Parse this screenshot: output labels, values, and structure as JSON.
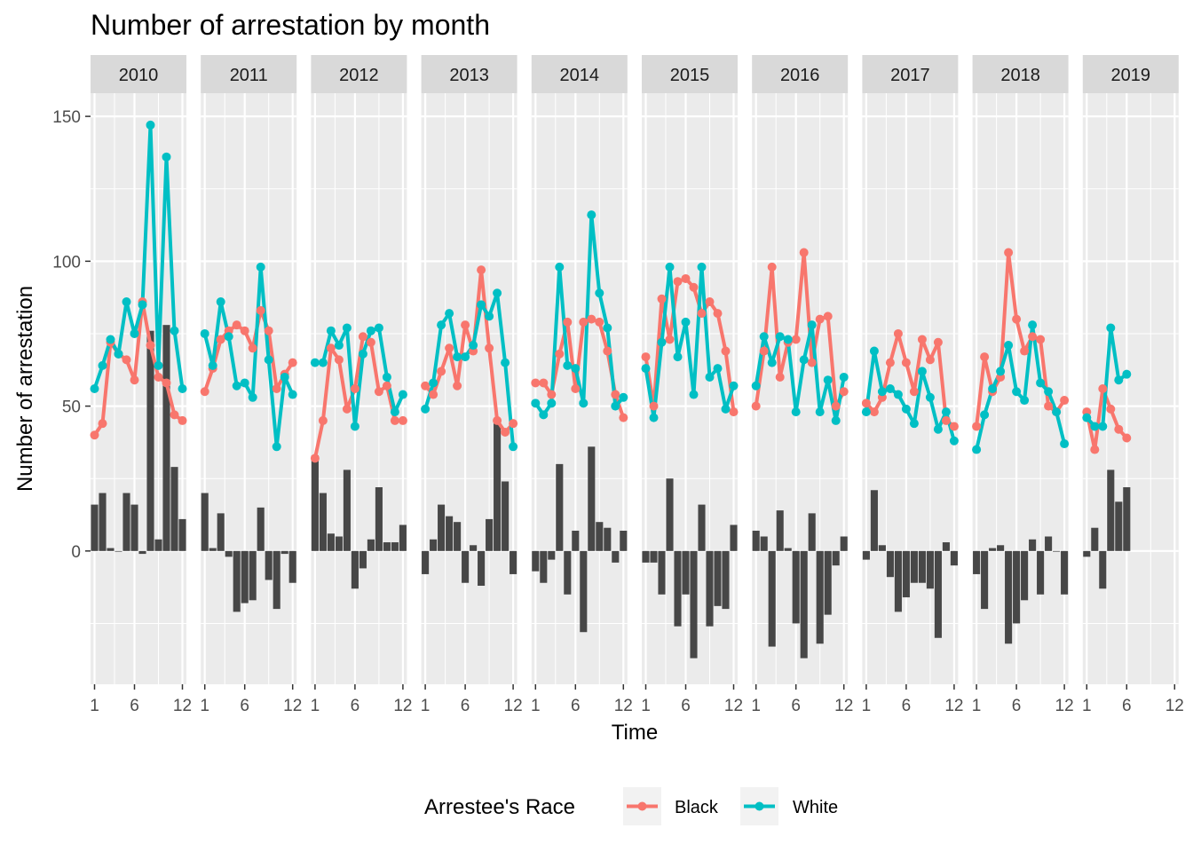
{
  "chart_data": {
    "type": "line",
    "title": "Number of arrestation by month",
    "xlabel": "Time",
    "ylabel": "Number of arrestation",
    "x_ticks": [
      "1",
      "6",
      "12"
    ],
    "y_ticks": [
      "0",
      "50",
      "100",
      "150"
    ],
    "ylim": [
      -46,
      158
    ],
    "xlim": [
      0.5,
      12.5
    ],
    "grid": true,
    "legend": {
      "title": "Arrestee's Race",
      "position": "bottom",
      "entries": [
        {
          "label": "Black",
          "color": "#f8766d"
        },
        {
          "label": "White",
          "color": "#00bfc4"
        }
      ]
    },
    "colors": {
      "Black": "#f8766d",
      "White": "#00bfc4",
      "difference_bars": "#474747"
    },
    "facets": [
      {
        "year": "2010",
        "black": [
          40,
          44,
          72,
          68,
          66,
          59,
          86,
          71,
          60,
          58,
          47,
          45
        ],
        "white": [
          56,
          64,
          73,
          68,
          86,
          75,
          85,
          147,
          64,
          136,
          76,
          56
        ],
        "diff": [
          16,
          20,
          1,
          0,
          20,
          16,
          -1,
          76,
          4,
          78,
          29,
          11
        ]
      },
      {
        "year": "2011",
        "black": [
          55,
          63,
          73,
          76,
          78,
          76,
          70,
          83,
          76,
          56,
          61,
          65
        ],
        "white": [
          75,
          64,
          86,
          74,
          57,
          58,
          53,
          98,
          66,
          36,
          60,
          54
        ],
        "diff": [
          20,
          1,
          13,
          -2,
          -21,
          -18,
          -17,
          15,
          -10,
          -20,
          -1,
          -11
        ]
      },
      {
        "year": "2012",
        "black": [
          32,
          45,
          70,
          66,
          49,
          56,
          74,
          72,
          55,
          57,
          45,
          45
        ],
        "white": [
          65,
          65,
          76,
          71,
          77,
          43,
          68,
          76,
          77,
          60,
          48,
          54
        ],
        "diff": [
          33,
          20,
          6,
          5,
          28,
          -13,
          -6,
          4,
          22,
          3,
          3,
          9
        ]
      },
      {
        "year": "2013",
        "black": [
          57,
          54,
          62,
          70,
          57,
          78,
          69,
          97,
          70,
          45,
          41,
          44
        ],
        "white": [
          49,
          58,
          78,
          82,
          67,
          67,
          71,
          85,
          81,
          89,
          65,
          36
        ],
        "diff": [
          -8,
          4,
          16,
          12,
          10,
          -11,
          2,
          -12,
          11,
          44,
          24,
          -8
        ]
      },
      {
        "year": "2014",
        "black": [
          58,
          58,
          54,
          68,
          79,
          56,
          79,
          80,
          79,
          69,
          54,
          46
        ],
        "white": [
          51,
          47,
          51,
          98,
          64,
          63,
          51,
          116,
          89,
          77,
          50,
          53
        ],
        "diff": [
          -7,
          -11,
          -3,
          30,
          -15,
          7,
          -28,
          36,
          10,
          8,
          -4,
          7
        ]
      },
      {
        "year": "2015",
        "black": [
          67,
          50,
          87,
          73,
          93,
          94,
          91,
          82,
          86,
          82,
          69,
          48
        ],
        "white": [
          63,
          46,
          72,
          98,
          67,
          79,
          54,
          98,
          60,
          63,
          49,
          57
        ],
        "diff": [
          -4,
          -4,
          -15,
          25,
          -26,
          -15,
          -37,
          16,
          -26,
          -19,
          -20,
          9
        ]
      },
      {
        "year": "2016",
        "black": [
          50,
          69,
          98,
          60,
          72,
          73,
          103,
          65,
          80,
          81,
          50,
          55
        ],
        "white": [
          57,
          74,
          65,
          74,
          73,
          48,
          66,
          78,
          48,
          59,
          45,
          60
        ],
        "diff": [
          7,
          5,
          -33,
          14,
          1,
          -25,
          -37,
          13,
          -32,
          -22,
          -5,
          5
        ]
      },
      {
        "year": "2017",
        "black": [
          51,
          48,
          53,
          65,
          75,
          65,
          55,
          73,
          66,
          72,
          45,
          43
        ],
        "white": [
          48,
          69,
          55,
          56,
          54,
          49,
          44,
          62,
          53,
          42,
          48,
          38
        ],
        "diff": [
          -3,
          21,
          2,
          -9,
          -21,
          -16,
          -11,
          -11,
          -13,
          -30,
          3,
          -5
        ]
      },
      {
        "year": "2018",
        "black": [
          43,
          67,
          55,
          60,
          103,
          80,
          69,
          74,
          73,
          50,
          48,
          52
        ],
        "white": [
          35,
          47,
          56,
          62,
          71,
          55,
          52,
          78,
          58,
          55,
          48,
          37
        ],
        "diff": [
          -8,
          -20,
          1,
          2,
          -32,
          -25,
          -17,
          4,
          -15,
          5,
          0,
          -15
        ]
      },
      {
        "year": "2019",
        "black": [
          48,
          35,
          56,
          49,
          42,
          39
        ],
        "white": [
          46,
          43,
          43,
          77,
          59,
          61
        ],
        "diff": [
          -2,
          8,
          -13,
          28,
          17,
          22
        ]
      }
    ]
  }
}
